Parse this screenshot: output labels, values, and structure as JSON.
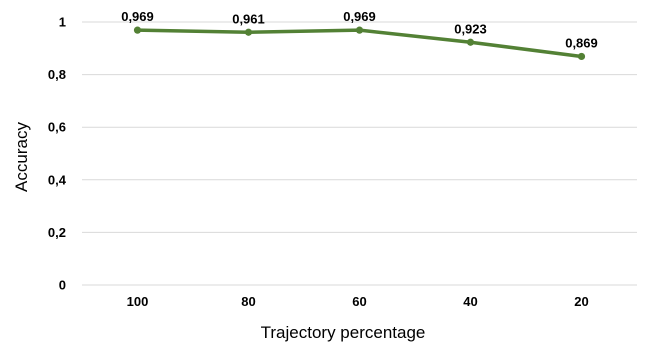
{
  "chart_data": {
    "type": "line",
    "title": "",
    "xlabel": "Trajectory percentage",
    "ylabel": "Accuracy",
    "categories": [
      "100",
      "80",
      "60",
      "40",
      "20"
    ],
    "series": [
      {
        "values": [
          0.969,
          0.961,
          0.969,
          0.923,
          0.869
        ],
        "data_labels": [
          "0,969",
          "0,961",
          "0,969",
          "0,923",
          "0,869"
        ],
        "color": "#538135"
      }
    ],
    "ylim": [
      0,
      1
    ],
    "yticks": [
      "0",
      "0,2",
      "0,4",
      "0,6",
      "0,8",
      "1"
    ],
    "ytick_values": [
      0,
      0.2,
      0.4,
      0.6,
      0.8,
      1
    ],
    "grid": true,
    "gridline_color": "#d9d9d9",
    "legend": "none"
  }
}
